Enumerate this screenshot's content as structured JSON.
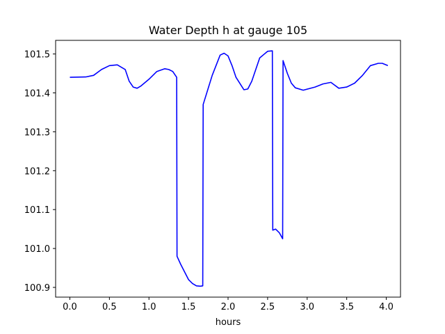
{
  "chart_data": {
    "type": "line",
    "title": "Water Depth h at gauge 105",
    "xlabel": "hours",
    "ylabel": "",
    "xlim": [
      -0.18,
      4.18
    ],
    "ylim": [
      100.875,
      101.535
    ],
    "grid": false,
    "x_ticks": [
      "0.0",
      "0.5",
      "1.0",
      "1.5",
      "2.0",
      "2.5",
      "3.0",
      "3.5",
      "4.0"
    ],
    "y_ticks": [
      "100.9",
      "101.0",
      "101.1",
      "101.2",
      "101.3",
      "101.4",
      "101.5"
    ],
    "series": [
      {
        "color": "#0000ff",
        "x": [
          0.0,
          0.2,
          0.3,
          0.4,
          0.5,
          0.6,
          0.7,
          0.75,
          0.8,
          0.85,
          0.9,
          1.0,
          1.1,
          1.2,
          1.25,
          1.3,
          1.35,
          1.355,
          1.4,
          1.5,
          1.55,
          1.6,
          1.65,
          1.68,
          1.685,
          1.7,
          1.8,
          1.9,
          1.95,
          2.0,
          2.05,
          2.1,
          2.2,
          2.25,
          2.3,
          2.4,
          2.5,
          2.56,
          2.565,
          2.6,
          2.65,
          2.69,
          2.695,
          2.75,
          2.8,
          2.85,
          2.95,
          3.1,
          3.2,
          3.3,
          3.4,
          3.5,
          3.6,
          3.7,
          3.8,
          3.9,
          3.95,
          4.02
        ],
        "y": [
          101.44,
          101.441,
          101.445,
          101.46,
          101.47,
          101.472,
          101.46,
          101.43,
          101.415,
          101.412,
          101.418,
          101.435,
          101.455,
          101.462,
          101.46,
          101.455,
          101.44,
          100.98,
          100.96,
          100.92,
          100.91,
          100.904,
          100.903,
          100.904,
          101.37,
          101.38,
          101.445,
          101.497,
          101.502,
          101.495,
          101.47,
          101.44,
          101.408,
          101.41,
          101.43,
          101.49,
          101.507,
          101.508,
          101.047,
          101.05,
          101.04,
          101.025,
          101.483,
          101.45,
          101.425,
          101.413,
          101.407,
          101.415,
          101.423,
          101.427,
          101.412,
          101.415,
          101.425,
          101.445,
          101.47,
          101.476,
          101.476,
          101.47
        ]
      }
    ]
  }
}
